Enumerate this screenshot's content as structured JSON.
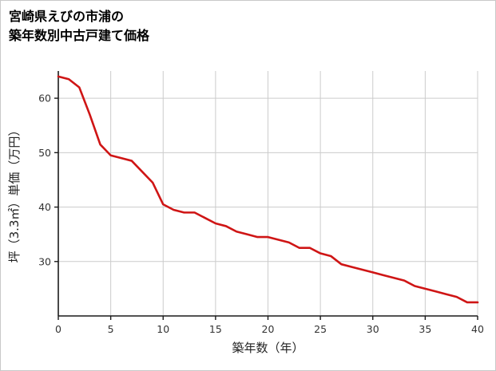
{
  "chart_data": {
    "type": "line",
    "title_lines": [
      "宮崎県えびの市浦の",
      "築年数別中古戸建て価格"
    ],
    "xlabel": "築年数（年）",
    "ylabel": "坪（3.3㎡）単価（万円）",
    "x": [
      0,
      1,
      2,
      3,
      4,
      5,
      6,
      7,
      8,
      9,
      10,
      11,
      12,
      13,
      14,
      15,
      16,
      17,
      18,
      19,
      20,
      21,
      22,
      23,
      24,
      25,
      26,
      27,
      28,
      29,
      30,
      31,
      32,
      33,
      34,
      35,
      36,
      37,
      38,
      39,
      40
    ],
    "values": [
      64,
      63.5,
      62,
      57,
      51.5,
      49.5,
      49,
      48.5,
      46.5,
      44.5,
      40.5,
      39.5,
      39,
      39,
      38,
      37,
      36.5,
      35.5,
      35,
      34.5,
      34.5,
      34,
      33.5,
      32.5,
      32.5,
      31.5,
      31,
      29.5,
      29,
      28.5,
      28,
      27.5,
      27,
      26.5,
      25.5,
      25,
      24.5,
      24,
      23.5,
      22.5,
      22.5
    ],
    "xlim": [
      0,
      40
    ],
    "ylim": [
      20,
      65
    ],
    "xticks": [
      0,
      5,
      10,
      15,
      20,
      25,
      30,
      35,
      40
    ],
    "yticks": [
      30,
      40,
      50,
      60
    ],
    "grid": true,
    "legend": "none",
    "line_color": "#cf1515",
    "grid_color": "#cccccc",
    "axis_color": "#1a1a1a",
    "tick_label_color": "#333333"
  }
}
